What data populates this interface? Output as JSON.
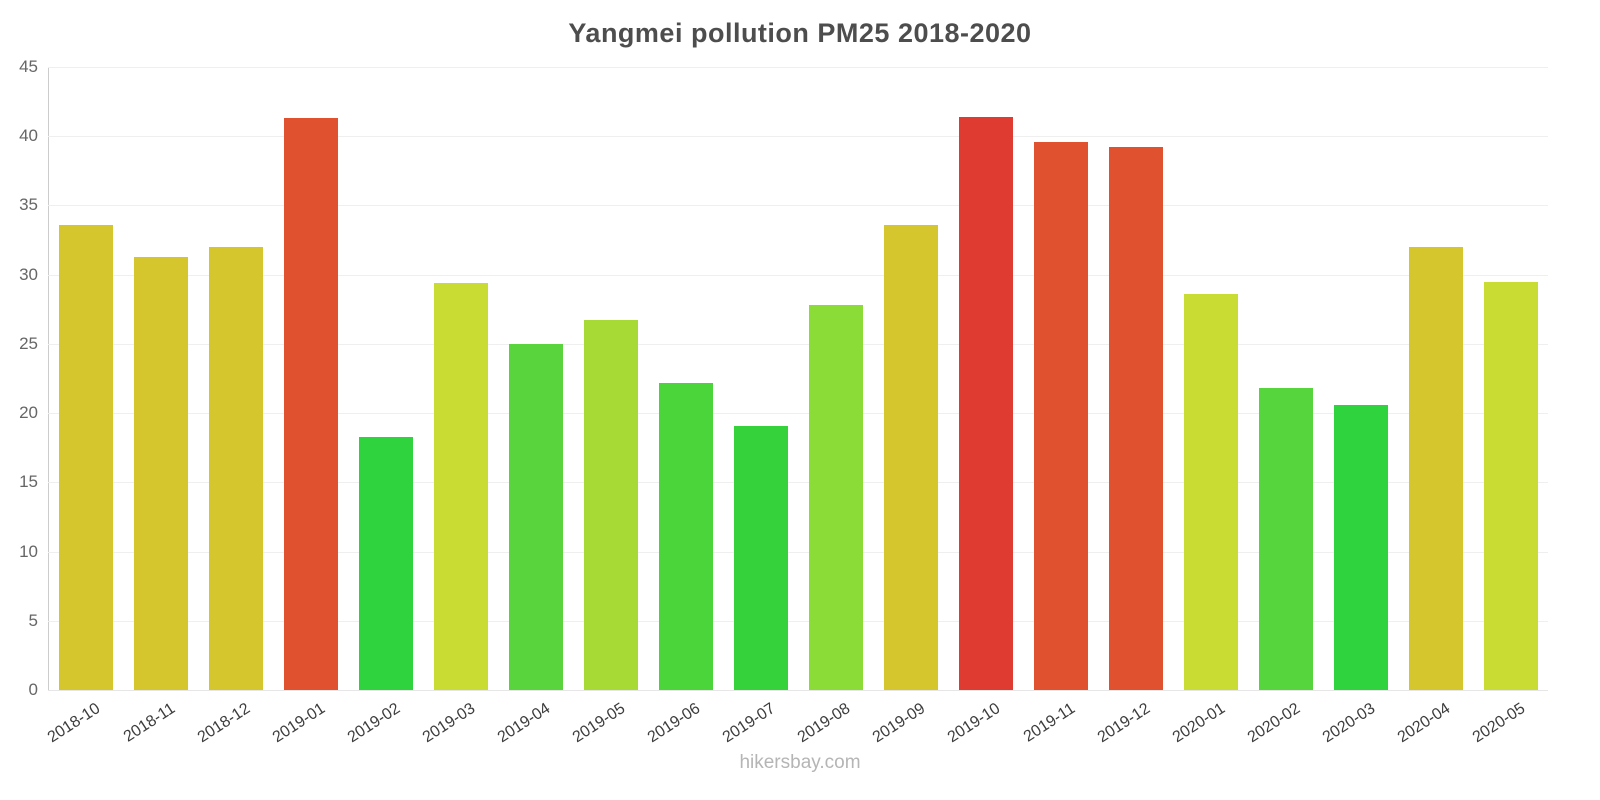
{
  "chart_data": {
    "type": "bar",
    "title": "Yangmei pollution PM25 2018-2020",
    "categories": [
      "2018-10",
      "2018-11",
      "2018-12",
      "2019-01",
      "2019-02",
      "2019-03",
      "2019-04",
      "2019-05",
      "2019-06",
      "2019-07",
      "2019-08",
      "2019-09",
      "2019-10",
      "2019-11",
      "2019-12",
      "2020-01",
      "2020-02",
      "2020-03",
      "2020-04",
      "2020-05"
    ],
    "values": [
      33.6,
      31.3,
      32.0,
      41.3,
      18.3,
      29.4,
      25.0,
      26.7,
      22.2,
      19.1,
      27.8,
      33.6,
      41.4,
      39.6,
      39.2,
      28.6,
      21.8,
      20.6,
      32.0,
      29.5
    ],
    "bar_colors": [
      "#d6c62e",
      "#d6c62e",
      "#d6c62e",
      "#e0512f",
      "#2fd33d",
      "#c8dc34",
      "#5ad43c",
      "#a8da36",
      "#4cd43b",
      "#35d23c",
      "#8cdc38",
      "#d6c62e",
      "#e03b30",
      "#e0512f",
      "#e0512f",
      "#c8dc34",
      "#56d63c",
      "#2fd33d",
      "#d6c62e",
      "#c8dc34"
    ],
    "xlabel": "",
    "ylabel": "",
    "ylim": [
      0,
      45
    ],
    "yticks": [
      0,
      5,
      10,
      15,
      20,
      25,
      30,
      35,
      40,
      45
    ],
    "grid": true,
    "legend": false
  },
  "watermark": "hikersbay.com"
}
